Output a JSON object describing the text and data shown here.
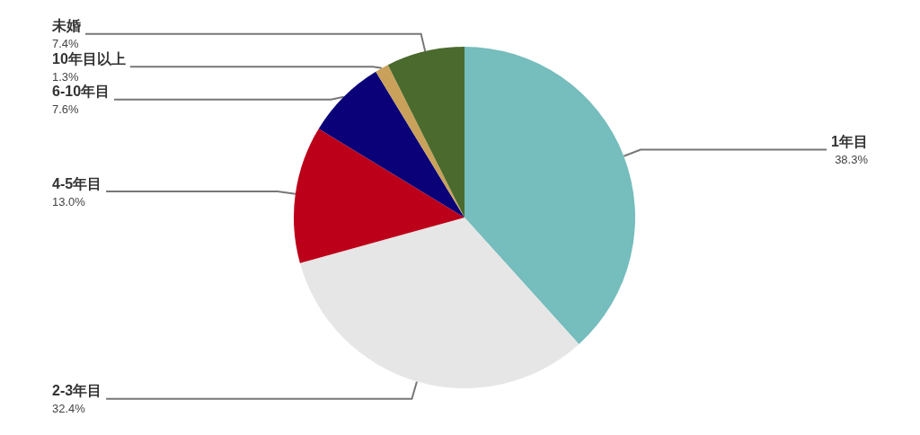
{
  "chart_data": {
    "type": "pie",
    "categories": [
      "1年目",
      "2-3年目",
      "4-5年目",
      "6-10年目",
      "10年目以上",
      "未婚"
    ],
    "values": [
      38.3,
      32.4,
      13.0,
      7.6,
      1.3,
      7.4
    ],
    "colors": [
      "#76bdbd",
      "#e6e6e6",
      "#bd0019",
      "#0a0078",
      "#c9a15a",
      "#4a6a2e"
    ],
    "value_labels": [
      "38.3%",
      "32.4%",
      "13.0%",
      "7.6%",
      "1.3%",
      "7.4%"
    ],
    "legend": false
  }
}
